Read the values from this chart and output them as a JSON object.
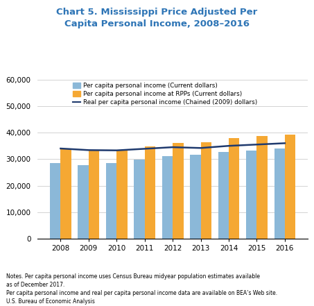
{
  "years": [
    2008,
    2009,
    2010,
    2011,
    2012,
    2013,
    2014,
    2015,
    2016
  ],
  "per_capita_current": [
    28500,
    27800,
    28500,
    29700,
    31200,
    31600,
    32700,
    33200,
    34000
  ],
  "per_capita_rpps": [
    33700,
    33300,
    33400,
    34800,
    36200,
    36300,
    38000,
    38700,
    39200
  ],
  "real_per_capita": [
    34000,
    33400,
    33300,
    33900,
    34500,
    34200,
    35000,
    35500,
    36000
  ],
  "bar_color_blue": "#8BB8D8",
  "bar_color_orange": "#F5A833",
  "line_color": "#1F3A6E",
  "title": "Chart 5. Mississippi Price Adjusted Per\nCapita Personal Income, 2008–2016",
  "title_color": "#2E75B6",
  "legend_labels": [
    "Per capita personal income (Current dollars)",
    "Per capita personal income at RPPs (Current dollars)",
    "Real per capita personal income (Chained (2009) dollars)"
  ],
  "ylim": [
    0,
    60000
  ],
  "yticks": [
    0,
    10000,
    20000,
    30000,
    40000,
    50000,
    60000
  ],
  "ytick_labels": [
    "0",
    "10,000",
    "20,000",
    "30,000",
    "40,000",
    "50,000",
    "60,000"
  ],
  "note_line1": "Notes. Per capita personal income uses Census Bureau midyear population estimates available",
  "note_line2": "as of December 2017.",
  "note_line3": "Per capita personal income and real per capita personal income data are available on BEA’s Web site.",
  "note_line4": "U.S. Bureau of Economic Analysis"
}
